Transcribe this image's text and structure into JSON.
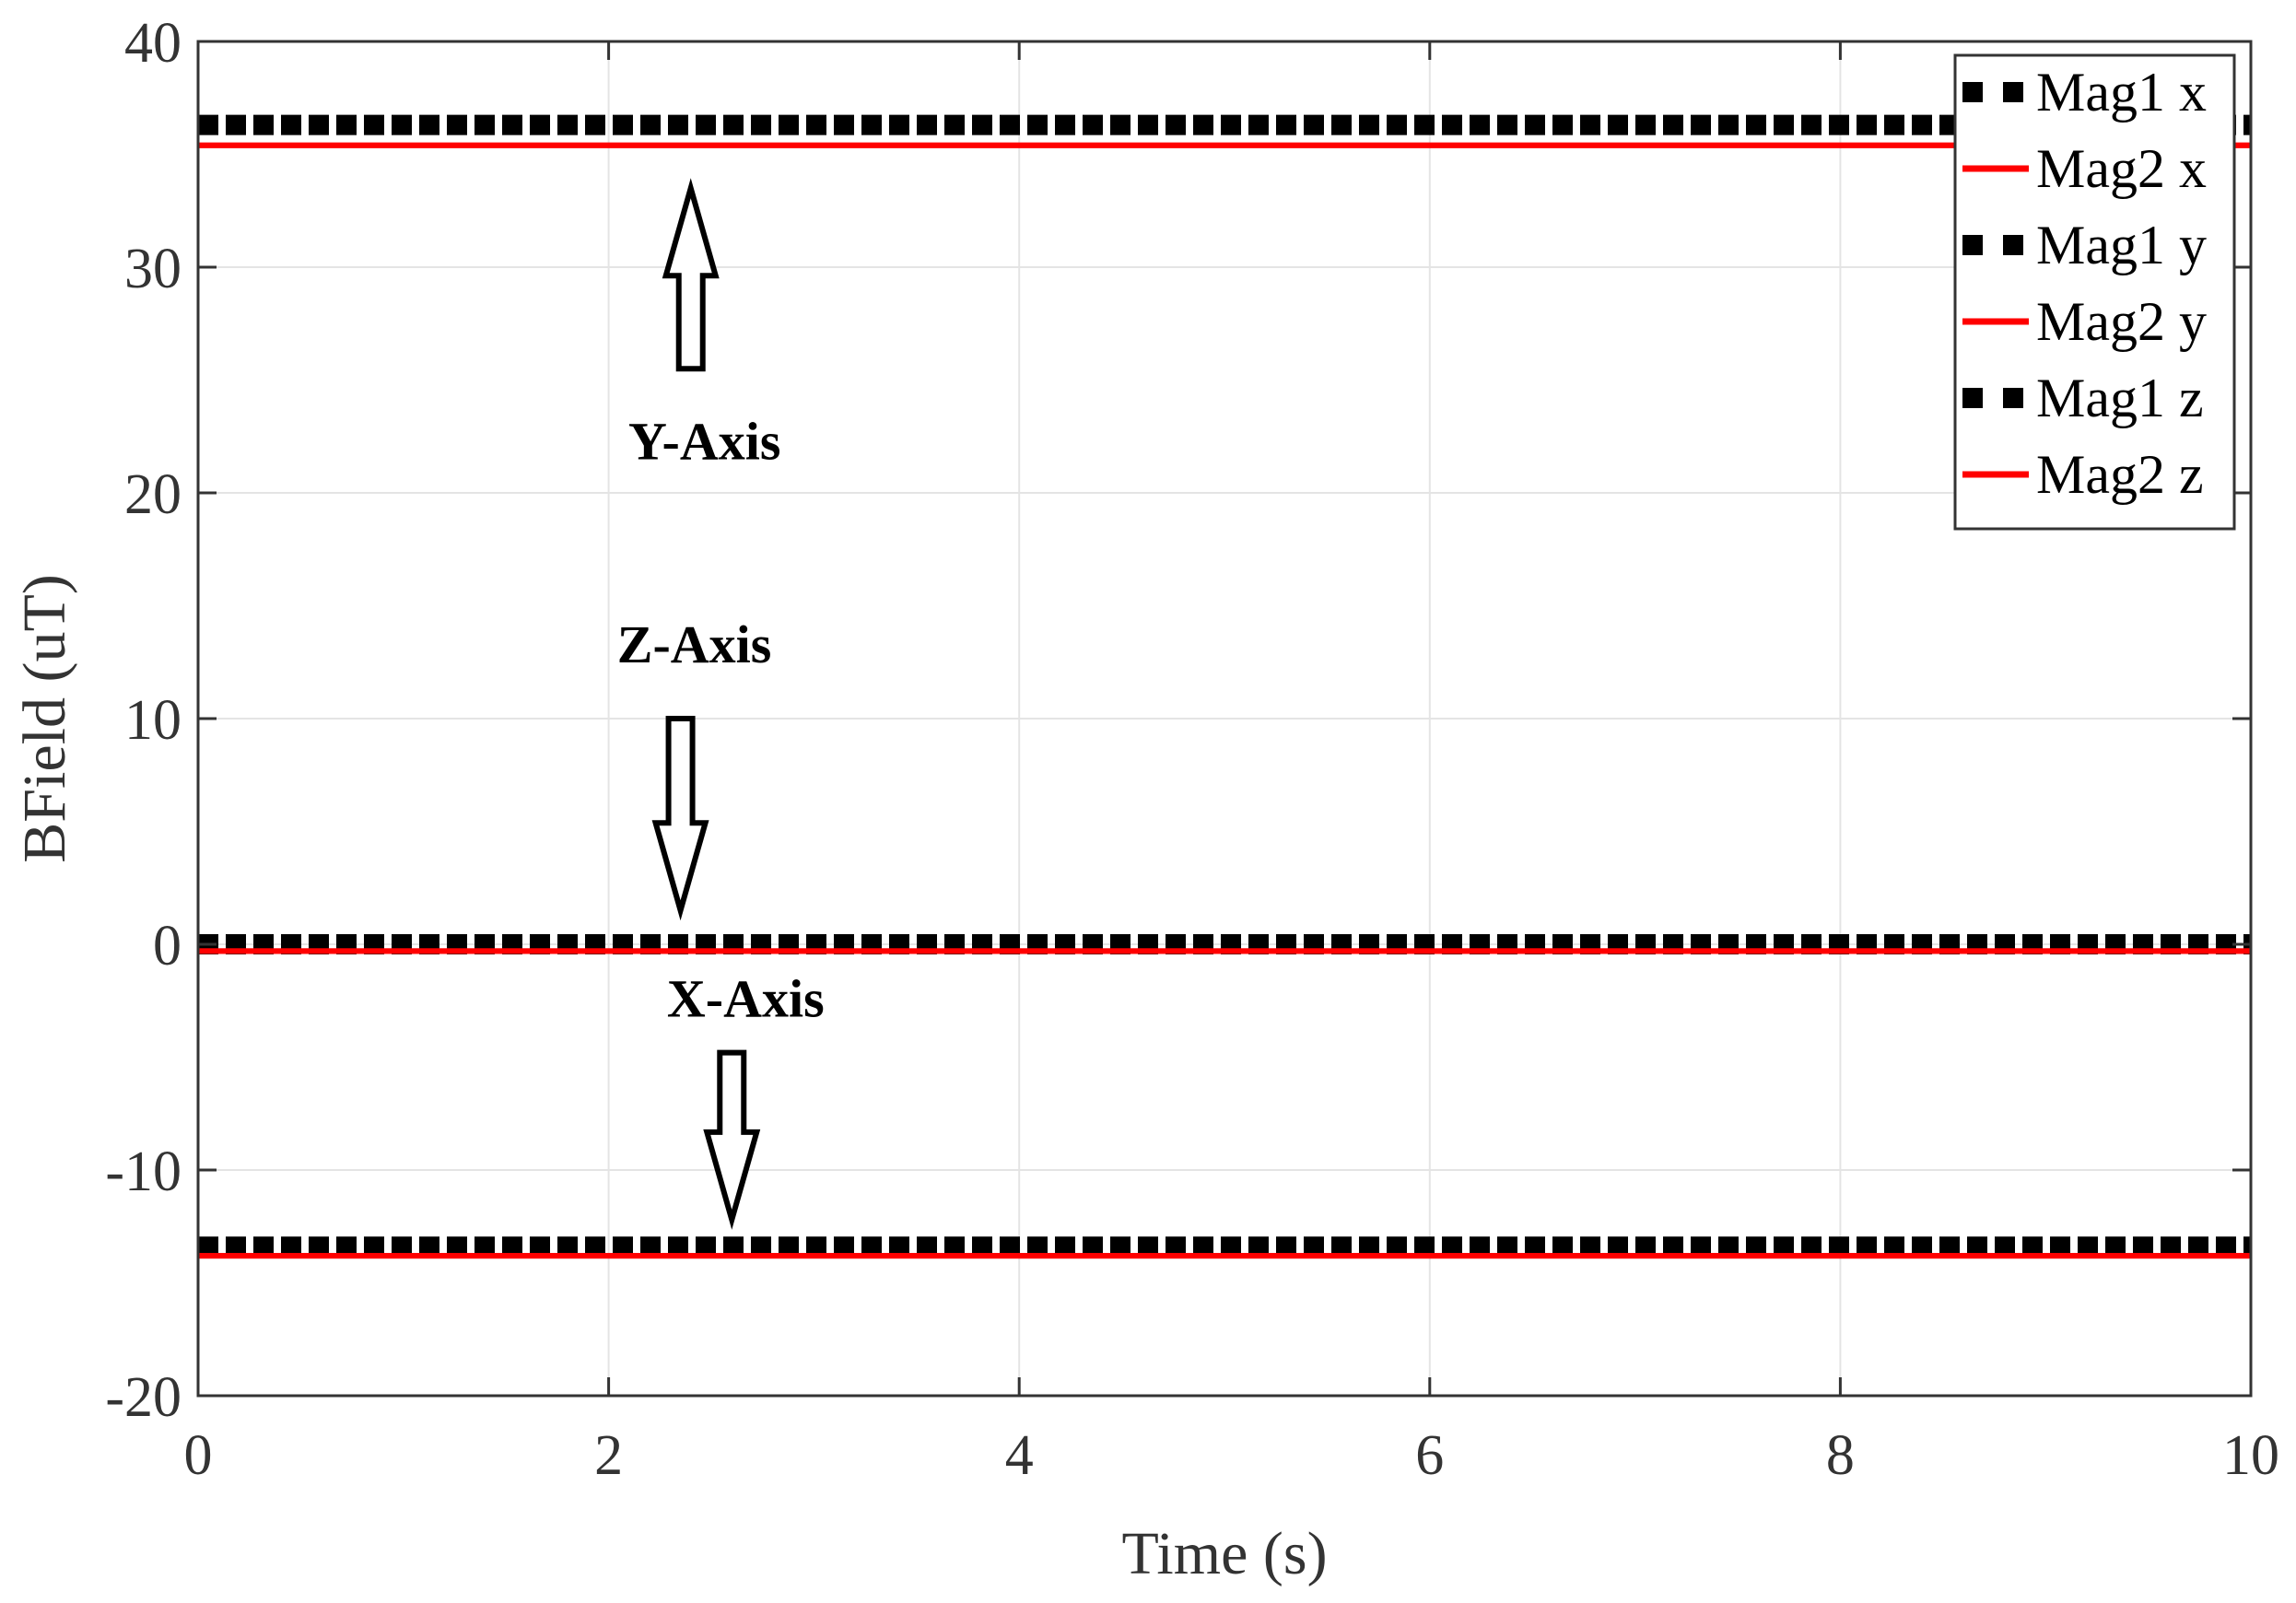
{
  "chart_data": {
    "type": "line",
    "xlabel": "Time (s)",
    "ylabel": "BField (uT)",
    "xlim": [
      0,
      10
    ],
    "ylim": [
      -20,
      40
    ],
    "xticks": [
      0,
      2,
      4,
      6,
      8,
      10
    ],
    "yticks": [
      40,
      30,
      20,
      10,
      0,
      -10,
      -20
    ],
    "xtick_labels": [
      "0",
      "2",
      "4",
      "6",
      "8",
      "10"
    ],
    "ytick_labels": [
      "40",
      "30",
      "20",
      "10",
      "0",
      "-10",
      "-20"
    ],
    "grid": true,
    "legend_position": "top-right",
    "x": [
      0,
      10
    ],
    "series": [
      {
        "name": "Mag1 x",
        "style": "dotted",
        "color": "#000000",
        "values": [
          -13.4,
          -13.4
        ]
      },
      {
        "name": "Mag2 x",
        "style": "solid",
        "color": "#ff0000",
        "values": [
          -13.8,
          -13.8
        ]
      },
      {
        "name": "Mag1 y",
        "style": "dotted",
        "color": "#000000",
        "values": [
          36.3,
          36.3
        ]
      },
      {
        "name": "Mag2 y",
        "style": "solid",
        "color": "#ff0000",
        "values": [
          35.4,
          35.4
        ]
      },
      {
        "name": "Mag1 z",
        "style": "dotted",
        "color": "#000000",
        "values": [
          0.0,
          0.0
        ]
      },
      {
        "name": "Mag2 z",
        "style": "solid",
        "color": "#ff0000",
        "values": [
          -0.3,
          -0.3
        ]
      }
    ],
    "annotations": [
      {
        "text": "Y-Axis",
        "arrow": "up",
        "x": 2.4,
        "text_y": 21.5,
        "arrow_from": 25.5,
        "arrow_to": 33.5
      },
      {
        "text": "Z-Axis",
        "arrow": "down",
        "x": 2.35,
        "text_y": 12.5,
        "arrow_from": 10.0,
        "arrow_to": 1.5
      },
      {
        "text": "X-Axis",
        "arrow": "down",
        "x": 2.6,
        "text_y": -3.2,
        "arrow_from": -4.8,
        "arrow_to": -12.2
      }
    ]
  }
}
